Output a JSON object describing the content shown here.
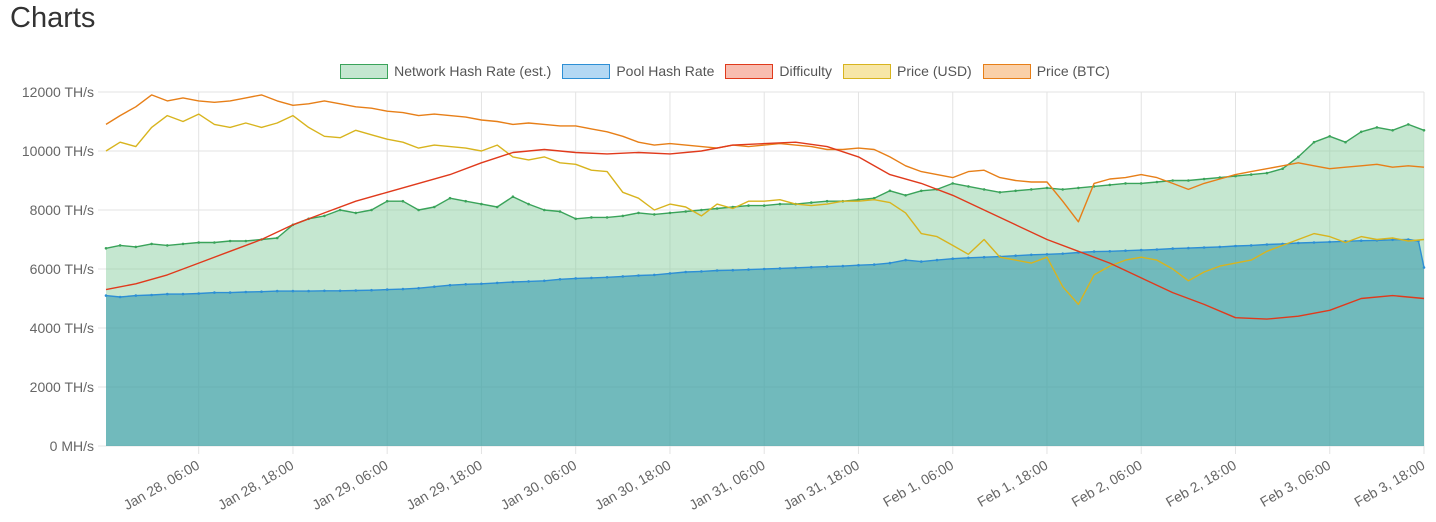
{
  "page": {
    "title": "Charts"
  },
  "legend": [
    {
      "label": "Network Hash Rate (est.)",
      "border": "#3aa35a",
      "fill": "#c4e7d0"
    },
    {
      "label": "Pool Hash Rate",
      "border": "#2d8fd5",
      "fill": "#b3d8f4"
    },
    {
      "label": "Difficulty",
      "border": "#e03a1c",
      "fill": "#f8bdb0"
    },
    {
      "label": "Price (USD)",
      "border": "#d8b41e",
      "fill": "#f7e6a6"
    },
    {
      "label": "Price (BTC)",
      "border": "#e77f18",
      "fill": "#fad0a8"
    }
  ],
  "chart_data": {
    "type": "line",
    "y_ticks": [
      "0 MH/s",
      "2000 TH/s",
      "4000 TH/s",
      "6000 TH/s",
      "8000 TH/s",
      "10000 TH/s",
      "12000 TH/s"
    ],
    "ylim": [
      0,
      12000
    ],
    "y_unit": "TH/s",
    "x_ticks": [
      "Jan 28, 06:00",
      "Jan 28, 18:00",
      "Jan 29, 06:00",
      "Jan 29, 18:00",
      "Jan 30, 06:00",
      "Jan 30, 18:00",
      "Jan 31, 06:00",
      "Jan 31, 18:00",
      "Feb 1, 06:00",
      "Feb 1, 18:00",
      "Feb 2, 06:00",
      "Feb 2, 18:00",
      "Feb 3, 06:00",
      "Feb 3, 18:00"
    ],
    "x_range_hours": [
      -11.8,
      156
    ],
    "grid": true,
    "legend_position": "top",
    "series": [
      {
        "name": "Network Hash Rate (est.)",
        "color": "#3aa35a",
        "fill": "rgba(133,204,157,0.48)",
        "x": [
          -11.8,
          -10,
          -8,
          -6,
          -4,
          -2,
          0,
          2,
          4,
          6,
          8,
          10,
          12,
          14,
          16,
          18,
          20,
          22,
          24,
          26,
          28,
          30,
          32,
          34,
          36,
          38,
          40,
          42,
          44,
          46,
          48,
          50,
          52,
          54,
          56,
          58,
          60,
          62,
          64,
          66,
          68,
          70,
          72,
          74,
          76,
          78,
          80,
          82,
          84,
          86,
          88,
          90,
          92,
          94,
          96,
          98,
          100,
          102,
          104,
          106,
          108,
          110,
          112,
          114,
          116,
          118,
          120,
          122,
          124,
          126,
          128,
          130,
          132,
          134,
          136,
          138,
          140,
          142,
          144,
          146,
          148,
          150,
          152,
          154,
          156
        ],
        "y": [
          6700,
          6800,
          6750,
          6850,
          6800,
          6850,
          6900,
          6900,
          6950,
          6950,
          7000,
          7050,
          7500,
          7700,
          7800,
          8000,
          7900,
          8000,
          8300,
          8300,
          8000,
          8100,
          8400,
          8300,
          8200,
          8100,
          8450,
          8200,
          8000,
          7950,
          7700,
          7750,
          7750,
          7800,
          7900,
          7850,
          7900,
          7950,
          8000,
          8050,
          8100,
          8150,
          8150,
          8200,
          8200,
          8250,
          8300,
          8300,
          8350,
          8400,
          8650,
          8500,
          8650,
          8700,
          8900,
          8800,
          8700,
          8600,
          8650,
          8700,
          8750,
          8700,
          8750,
          8800,
          8850,
          8900,
          8900,
          8950,
          9000,
          9000,
          9050,
          9100,
          9150,
          9200,
          9250,
          9400,
          9800,
          10300,
          10500,
          10300,
          10650,
          10800,
          10700,
          10900,
          10700
        ]
      },
      {
        "name": "Pool Hash Rate",
        "color": "#2d8fd5",
        "fill": "rgba(44,150,171,0.55)",
        "x": [
          -11.8,
          -10,
          -8,
          -6,
          -4,
          -2,
          0,
          2,
          4,
          6,
          8,
          10,
          12,
          14,
          16,
          18,
          20,
          22,
          24,
          26,
          28,
          30,
          32,
          34,
          36,
          38,
          40,
          42,
          44,
          46,
          48,
          50,
          52,
          54,
          56,
          58,
          60,
          62,
          64,
          66,
          68,
          70,
          72,
          74,
          76,
          78,
          80,
          82,
          84,
          86,
          88,
          90,
          92,
          94,
          96,
          98,
          100,
          102,
          104,
          106,
          108,
          110,
          112,
          114,
          116,
          118,
          120,
          122,
          124,
          126,
          128,
          130,
          132,
          134,
          136,
          138,
          140,
          142,
          144,
          146,
          148,
          150,
          152,
          154,
          155.3,
          156
        ],
        "y": [
          5100,
          5050,
          5100,
          5120,
          5150,
          5150,
          5170,
          5200,
          5200,
          5220,
          5230,
          5250,
          5250,
          5250,
          5260,
          5260,
          5270,
          5280,
          5300,
          5320,
          5350,
          5400,
          5450,
          5480,
          5500,
          5530,
          5560,
          5580,
          5600,
          5650,
          5680,
          5700,
          5720,
          5750,
          5780,
          5800,
          5850,
          5900,
          5920,
          5950,
          5960,
          5980,
          6000,
          6020,
          6040,
          6060,
          6080,
          6100,
          6130,
          6150,
          6200,
          6300,
          6250,
          6300,
          6350,
          6380,
          6400,
          6420,
          6450,
          6480,
          6500,
          6520,
          6560,
          6590,
          6600,
          6620,
          6640,
          6660,
          6690,
          6710,
          6730,
          6750,
          6780,
          6800,
          6830,
          6850,
          6880,
          6900,
          6920,
          6940,
          6960,
          6970,
          6990,
          7000,
          6950,
          6050
        ]
      },
      {
        "name": "Difficulty",
        "color": "#e03a1c",
        "fill": "none",
        "x": [
          -11.8,
          -8,
          -4,
          0,
          4,
          8,
          12,
          16,
          20,
          24,
          28,
          32,
          36,
          40,
          44,
          48,
          52,
          56,
          60,
          64,
          68,
          72,
          76,
          80,
          84,
          88,
          92,
          96,
          100,
          104,
          108,
          112,
          116,
          120,
          124,
          128,
          132,
          136,
          140,
          144,
          148,
          152,
          156
        ],
        "y": [
          5300,
          5500,
          5800,
          6200,
          6600,
          7000,
          7500,
          7900,
          8300,
          8600,
          8900,
          9200,
          9600,
          9950,
          10050,
          9950,
          9900,
          9950,
          9900,
          10000,
          10200,
          10250,
          10300,
          10150,
          9800,
          9200,
          8900,
          8500,
          8000,
          7500,
          7000,
          6600,
          6200,
          5700,
          5200,
          4800,
          4350,
          4300,
          4400,
          4600,
          5000,
          5100,
          5000
        ]
      },
      {
        "name": "Price (USD)",
        "color": "#d8b41e",
        "fill": "none",
        "x": [
          -11.8,
          -10,
          -8,
          -6,
          -4,
          -2,
          0,
          2,
          4,
          6,
          8,
          10,
          12,
          14,
          16,
          18,
          20,
          22,
          24,
          26,
          28,
          30,
          32,
          34,
          36,
          38,
          40,
          42,
          44,
          46,
          48,
          50,
          52,
          54,
          56,
          58,
          60,
          62,
          64,
          66,
          68,
          70,
          72,
          74,
          76,
          78,
          80,
          82,
          84,
          86,
          88,
          90,
          92,
          94,
          96,
          98,
          100,
          102,
          104,
          106,
          108,
          110,
          112,
          114,
          116,
          118,
          120,
          122,
          124,
          126,
          128,
          130,
          132,
          134,
          136,
          138,
          140,
          142,
          144,
          146,
          148,
          150,
          152,
          154,
          156
        ],
        "y": [
          10000,
          10300,
          10150,
          10800,
          11200,
          11000,
          11250,
          10900,
          10800,
          10950,
          10800,
          10950,
          11200,
          10800,
          10500,
          10450,
          10700,
          10550,
          10400,
          10300,
          10100,
          10200,
          10150,
          10100,
          10000,
          10200,
          9800,
          9700,
          9800,
          9600,
          9550,
          9350,
          9300,
          8600,
          8400,
          8000,
          8200,
          8100,
          7800,
          8200,
          8050,
          8300,
          8300,
          8350,
          8200,
          8150,
          8200,
          8300,
          8300,
          8350,
          8250,
          7900,
          7200,
          7100,
          6800,
          6500,
          7000,
          6400,
          6300,
          6200,
          6400,
          5400,
          4800,
          5800,
          6100,
          6300,
          6400,
          6300,
          6000,
          5600,
          5900,
          6100,
          6200,
          6300,
          6600,
          6800,
          7000,
          7200,
          7100,
          6900,
          7100,
          7000,
          7050,
          6950,
          7000
        ]
      },
      {
        "name": "Price (BTC)",
        "color": "#e77f18",
        "fill": "none",
        "x": [
          -11.8,
          -10,
          -8,
          -6,
          -4,
          -2,
          0,
          2,
          4,
          6,
          8,
          10,
          12,
          14,
          16,
          18,
          20,
          22,
          24,
          26,
          28,
          30,
          32,
          34,
          36,
          38,
          40,
          42,
          44,
          46,
          48,
          50,
          52,
          54,
          56,
          58,
          60,
          62,
          64,
          66,
          68,
          70,
          72,
          74,
          76,
          78,
          80,
          82,
          84,
          86,
          88,
          90,
          92,
          94,
          96,
          98,
          100,
          102,
          104,
          106,
          108,
          110,
          112,
          114,
          116,
          118,
          120,
          122,
          124,
          126,
          128,
          130,
          132,
          134,
          136,
          138,
          140,
          142,
          144,
          146,
          148,
          150,
          152,
          154,
          156
        ],
        "y": [
          10900,
          11200,
          11500,
          11900,
          11700,
          11800,
          11700,
          11650,
          11700,
          11800,
          11900,
          11700,
          11550,
          11600,
          11700,
          11600,
          11500,
          11450,
          11350,
          11300,
          11200,
          11250,
          11200,
          11150,
          11050,
          11000,
          10900,
          10950,
          10900,
          10850,
          10850,
          10750,
          10650,
          10500,
          10300,
          10200,
          10250,
          10200,
          10150,
          10100,
          10200,
          10150,
          10200,
          10250,
          10200,
          10150,
          10050,
          10050,
          10100,
          10050,
          9800,
          9500,
          9300,
          9200,
          9100,
          9300,
          9350,
          9100,
          9000,
          8950,
          8950,
          8300,
          7600,
          8900,
          9050,
          9100,
          9200,
          9100,
          8900,
          8700,
          8900,
          9050,
          9200,
          9300,
          9400,
          9500,
          9600,
          9500,
          9400,
          9450,
          9500,
          9550,
          9450,
          9500,
          9450
        ]
      }
    ]
  }
}
